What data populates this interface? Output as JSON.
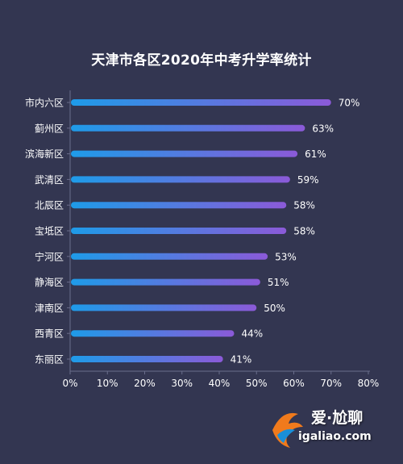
{
  "chart_data": {
    "type": "bar",
    "orientation": "horizontal",
    "title": "天津市各区2020年中考升学率统计",
    "categories": [
      "市内六区",
      "蓟州区",
      "滨海新区",
      "武清区",
      "北辰区",
      "宝坻区",
      "宁河区",
      "静海区",
      "津南区",
      "西青区",
      "东丽区"
    ],
    "values": [
      70,
      63,
      61,
      59,
      58,
      58,
      53,
      51,
      50,
      44,
      41
    ],
    "value_labels": [
      "70%",
      "63%",
      "61%",
      "59%",
      "58%",
      "58%",
      "53%",
      "51%",
      "50%",
      "44%",
      "41%"
    ],
    "xlim": [
      0,
      80
    ],
    "x_ticks": [
      "0%",
      "10%",
      "20%",
      "30%",
      "40%",
      "50%",
      "60%",
      "70%",
      "80%"
    ],
    "grid": false,
    "legend": "none",
    "colors": {
      "bar_start": "#1e9be8",
      "bar_end": "#8b5ad8",
      "background": "#333651",
      "axis": "#6a6d8c",
      "text": "#ffffff"
    }
  },
  "watermark": {
    "brand": "爱·尬聊",
    "site": "igaliao.com"
  }
}
